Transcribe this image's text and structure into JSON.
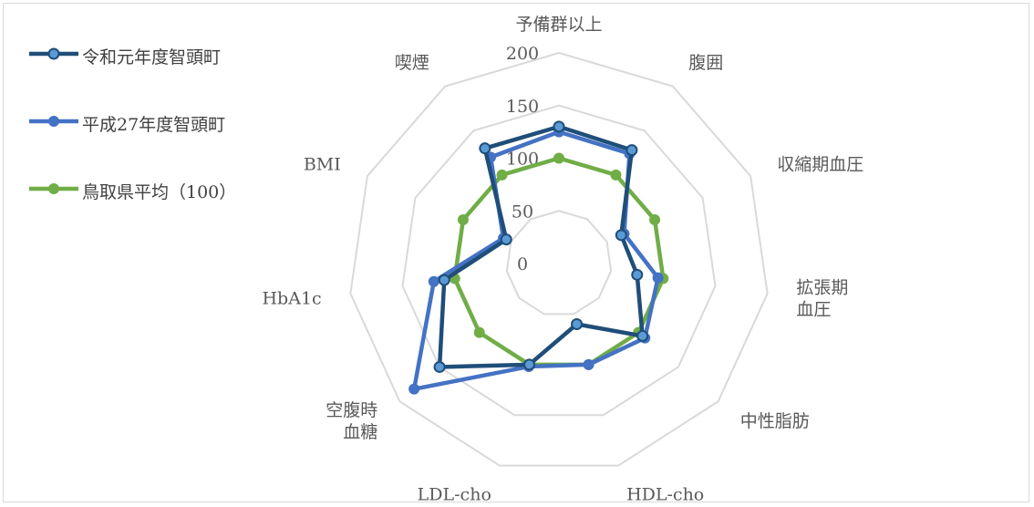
{
  "chart_data": {
    "type": "radar",
    "title": "",
    "axes": [
      "予備群以上",
      "腹囲",
      "収縮期血圧",
      "拡張期\n血圧",
      "中性脂肪",
      "HDL-cho",
      "LDL-cho",
      "空腹時\n血糖",
      "HbA1c",
      "BMI",
      "喫煙"
    ],
    "radial_ticks": [
      "0",
      "50",
      "100",
      "150",
      "200"
    ],
    "rlim": [
      0,
      200
    ],
    "grid": true,
    "legend_position": "left",
    "series": [
      {
        "name": "令和元年度智頭町",
        "color": "#1f4e79",
        "values": [
          130,
          128,
          65,
          75,
          105,
          60,
          100,
          150,
          110,
          55,
          130
        ]
      },
      {
        "name": "平成27年度智頭町",
        "color": "#4472c4",
        "values": [
          125,
          124,
          68,
          95,
          108,
          100,
          102,
          182,
          120,
          58,
          120
        ]
      },
      {
        "name": "鳥取県平均（100）",
        "color": "#70ad47",
        "values": [
          100,
          100,
          100,
          100,
          100,
          100,
          100,
          100,
          100,
          100,
          100
        ]
      }
    ]
  }
}
